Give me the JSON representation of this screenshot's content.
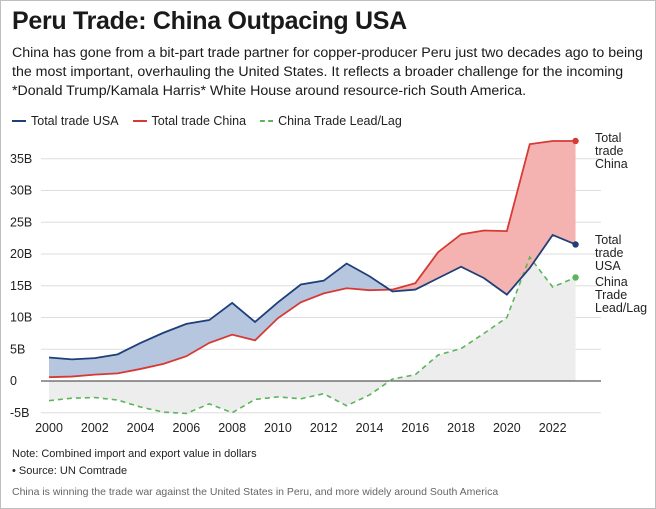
{
  "header": {
    "title": "Peru Trade: China Outpacing USA",
    "subtitle": "China has gone from a bit-part trade partner for copper-producer Peru just two decades ago to being the most important, overhauling the United States. It reflects a broader challenge for the incoming *Donald Trump/Kamala Harris* White House around resource-rich South America."
  },
  "footer": {
    "note": "Note: Combined import and export value in dollars",
    "source": "• Source: UN Comtrade",
    "caption": "China is winning the trade war against the United States in Peru, and more widely around South America"
  },
  "colors": {
    "usa": "#1f3f7a",
    "china": "#d63a35",
    "lead": "#5bb55b",
    "china_fill": "#f4b3b1",
    "usa_fill": "#b6c6df",
    "lead_fill": "#ededed"
  },
  "chart_data": {
    "type": "line",
    "x": [
      2000,
      2001,
      2002,
      2003,
      2004,
      2005,
      2006,
      2007,
      2008,
      2009,
      2010,
      2011,
      2012,
      2013,
      2014,
      2015,
      2016,
      2017,
      2018,
      2019,
      2020,
      2021,
      2022,
      2023
    ],
    "series": [
      {
        "name": "Total trade USA",
        "end_label": "Total trade USA",
        "values": [
          3.7,
          3.4,
          3.6,
          4.2,
          6.0,
          7.6,
          9.0,
          9.6,
          12.3,
          9.3,
          12.4,
          15.2,
          15.8,
          18.5,
          16.5,
          14.1,
          14.4,
          16.2,
          18.0,
          16.2,
          13.6,
          17.8,
          23.0,
          21.5
        ]
      },
      {
        "name": "Total trade China",
        "end_label": "Total trade China",
        "values": [
          0.6,
          0.7,
          1.0,
          1.2,
          1.9,
          2.7,
          3.9,
          6.0,
          7.3,
          6.4,
          9.9,
          12.4,
          13.8,
          14.6,
          14.3,
          14.4,
          15.4,
          20.3,
          23.1,
          23.7,
          23.6,
          37.3,
          37.8,
          37.8
        ]
      },
      {
        "name": "China Trade Lead/Lag",
        "end_label": "China Trade Lead/Lag",
        "values": [
          -3.1,
          -2.7,
          -2.6,
          -3.0,
          -4.1,
          -4.9,
          -5.1,
          -3.6,
          -5.0,
          -2.9,
          -2.5,
          -2.8,
          -2.0,
          -3.9,
          -2.2,
          0.3,
          1.0,
          4.1,
          5.1,
          7.5,
          10.0,
          19.5,
          14.8,
          16.3
        ]
      }
    ],
    "x_ticks": [
      "2000",
      "2002",
      "2004",
      "2006",
      "2008",
      "2010",
      "2012",
      "2014",
      "2016",
      "2018",
      "2020",
      "2022"
    ],
    "y_ticks": [
      "-5B",
      "0",
      "5B",
      "10B",
      "15B",
      "20B",
      "25B",
      "30B",
      "35B"
    ],
    "y_tick_values": [
      -5,
      0,
      5,
      10,
      15,
      20,
      25,
      30,
      35
    ],
    "xlim": [
      2000,
      2023.5
    ],
    "ylim": [
      -5,
      38
    ],
    "grid": "horizontal",
    "legend": "top-left"
  }
}
